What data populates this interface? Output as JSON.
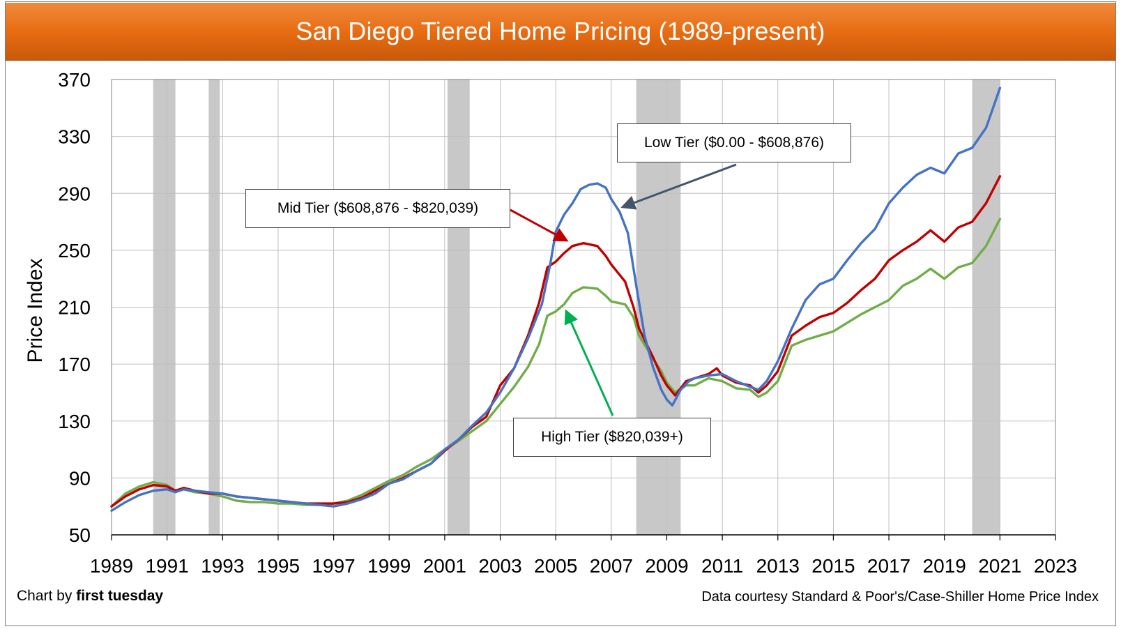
{
  "title": "San Diego Tiered Home Pricing (1989-present)",
  "credit": {
    "prefix": "Chart by ",
    "brand": "first tuesday"
  },
  "source": "Data courtesy Standard & Poor's/Case-Shiller Home Price Index",
  "colors": {
    "low": "#4472c4",
    "mid": "#c00000",
    "high": "#70ad47",
    "recession": "#c8c8c8",
    "low_arrow": "#44546a",
    "mid_arrow": "#c00000",
    "high_arrow": "#00b050"
  },
  "callouts": {
    "low": "Low Tier ($0.00 - $608,876)",
    "mid": "Mid Tier ($608,876 - $820,039)",
    "high": "High Tier ($820,039+)"
  },
  "chart_data": {
    "type": "line",
    "ylabel": "Price Index",
    "xlabel": "",
    "xlim": [
      1989,
      2023
    ],
    "ylim": [
      50,
      370
    ],
    "x_ticks": [
      1989,
      1991,
      1993,
      1995,
      1997,
      1999,
      2001,
      2003,
      2005,
      2007,
      2009,
      2011,
      2013,
      2015,
      2017,
      2019,
      2021,
      2023
    ],
    "y_ticks": [
      50,
      90,
      130,
      170,
      210,
      250,
      290,
      330,
      370
    ],
    "grid": true,
    "recessions": [
      [
        1990.5,
        1991.3
      ],
      [
        1992.5,
        1992.9
      ],
      [
        2001.1,
        2001.9
      ],
      [
        2007.9,
        2009.5
      ],
      [
        2020.0,
        2021.0
      ]
    ],
    "series": [
      {
        "name": "Low Tier ($0.00 - $608,876)",
        "key": "low",
        "points": [
          [
            1989.0,
            67
          ],
          [
            1989.5,
            73
          ],
          [
            1990.0,
            78
          ],
          [
            1990.5,
            81
          ],
          [
            1991.0,
            82
          ],
          [
            1991.3,
            80
          ],
          [
            1991.6,
            82
          ],
          [
            1992.0,
            81
          ],
          [
            1992.5,
            80
          ],
          [
            1993.0,
            79
          ],
          [
            1993.5,
            77
          ],
          [
            1994.0,
            76
          ],
          [
            1994.5,
            75
          ],
          [
            1995.0,
            74
          ],
          [
            1995.5,
            73
          ],
          [
            1996.0,
            72
          ],
          [
            1996.5,
            71
          ],
          [
            1997.0,
            70
          ],
          [
            1997.5,
            72
          ],
          [
            1998.0,
            75
          ],
          [
            1998.5,
            79
          ],
          [
            1999.0,
            86
          ],
          [
            1999.5,
            89
          ],
          [
            2000.0,
            95
          ],
          [
            2000.5,
            100
          ],
          [
            2001.0,
            110
          ],
          [
            2001.5,
            117
          ],
          [
            2002.0,
            127
          ],
          [
            2002.5,
            136
          ],
          [
            2003.0,
            150
          ],
          [
            2003.5,
            167
          ],
          [
            2004.0,
            188
          ],
          [
            2004.5,
            212
          ],
          [
            2004.8,
            240
          ],
          [
            2005.0,
            263
          ],
          [
            2005.3,
            275
          ],
          [
            2005.6,
            283
          ],
          [
            2005.9,
            293
          ],
          [
            2006.2,
            296
          ],
          [
            2006.5,
            297
          ],
          [
            2006.8,
            294
          ],
          [
            2007.0,
            286
          ],
          [
            2007.3,
            277
          ],
          [
            2007.6,
            262
          ],
          [
            2007.9,
            225
          ],
          [
            2008.2,
            190
          ],
          [
            2008.5,
            168
          ],
          [
            2008.8,
            152
          ],
          [
            2009.0,
            145
          ],
          [
            2009.2,
            141
          ],
          [
            2009.5,
            152
          ],
          [
            2009.8,
            158
          ],
          [
            2010.0,
            160
          ],
          [
            2010.5,
            162
          ],
          [
            2011.0,
            163
          ],
          [
            2011.5,
            158
          ],
          [
            2012.0,
            154
          ],
          [
            2012.3,
            152
          ],
          [
            2012.6,
            158
          ],
          [
            2013.0,
            172
          ],
          [
            2013.5,
            195
          ],
          [
            2014.0,
            215
          ],
          [
            2014.5,
            226
          ],
          [
            2015.0,
            230
          ],
          [
            2015.5,
            243
          ],
          [
            2016.0,
            255
          ],
          [
            2016.5,
            265
          ],
          [
            2017.0,
            283
          ],
          [
            2017.5,
            294
          ],
          [
            2018.0,
            303
          ],
          [
            2018.5,
            308
          ],
          [
            2019.0,
            304
          ],
          [
            2019.5,
            318
          ],
          [
            2020.0,
            322
          ],
          [
            2020.5,
            336
          ],
          [
            2021.0,
            364
          ]
        ]
      },
      {
        "name": "Mid Tier ($608,876 - $820,039)",
        "key": "mid",
        "points": [
          [
            1989.0,
            70
          ],
          [
            1989.5,
            77
          ],
          [
            1990.0,
            82
          ],
          [
            1990.5,
            85
          ],
          [
            1991.0,
            84
          ],
          [
            1991.3,
            81
          ],
          [
            1991.6,
            83
          ],
          [
            1992.0,
            81
          ],
          [
            1992.5,
            79
          ],
          [
            1993.0,
            79
          ],
          [
            1993.5,
            77
          ],
          [
            1994.0,
            76
          ],
          [
            1994.5,
            75
          ],
          [
            1995.0,
            74
          ],
          [
            1995.5,
            73
          ],
          [
            1996.0,
            72
          ],
          [
            1996.5,
            72
          ],
          [
            1997.0,
            72
          ],
          [
            1997.5,
            73
          ],
          [
            1998.0,
            76
          ],
          [
            1998.5,
            81
          ],
          [
            1999.0,
            86
          ],
          [
            1999.5,
            90
          ],
          [
            2000.0,
            95
          ],
          [
            2000.5,
            100
          ],
          [
            2001.0,
            109
          ],
          [
            2001.5,
            117
          ],
          [
            2002.0,
            126
          ],
          [
            2002.5,
            133
          ],
          [
            2003.0,
            155
          ],
          [
            2003.5,
            167
          ],
          [
            2004.0,
            190
          ],
          [
            2004.4,
            213
          ],
          [
            2004.7,
            238
          ],
          [
            2005.0,
            242
          ],
          [
            2005.3,
            248
          ],
          [
            2005.6,
            253
          ],
          [
            2006.0,
            255
          ],
          [
            2006.5,
            253
          ],
          [
            2006.8,
            246
          ],
          [
            2007.0,
            240
          ],
          [
            2007.5,
            228
          ],
          [
            2007.8,
            210
          ],
          [
            2008.0,
            195
          ],
          [
            2008.5,
            175
          ],
          [
            2008.8,
            162
          ],
          [
            2009.0,
            155
          ],
          [
            2009.3,
            148
          ],
          [
            2009.7,
            158
          ],
          [
            2010.0,
            160
          ],
          [
            2010.5,
            163
          ],
          [
            2010.8,
            167
          ],
          [
            2011.0,
            162
          ],
          [
            2011.5,
            157
          ],
          [
            2012.0,
            155
          ],
          [
            2012.3,
            150
          ],
          [
            2012.6,
            155
          ],
          [
            2013.0,
            165
          ],
          [
            2013.5,
            190
          ],
          [
            2014.0,
            197
          ],
          [
            2014.5,
            203
          ],
          [
            2015.0,
            206
          ],
          [
            2015.5,
            213
          ],
          [
            2016.0,
            222
          ],
          [
            2016.5,
            230
          ],
          [
            2017.0,
            243
          ],
          [
            2017.5,
            250
          ],
          [
            2018.0,
            256
          ],
          [
            2018.5,
            264
          ],
          [
            2019.0,
            256
          ],
          [
            2019.5,
            266
          ],
          [
            2020.0,
            270
          ],
          [
            2020.5,
            283
          ],
          [
            2021.0,
            302
          ]
        ]
      },
      {
        "name": "High Tier ($820,039+)",
        "key": "high",
        "points": [
          [
            1989.0,
            70
          ],
          [
            1989.5,
            79
          ],
          [
            1990.0,
            84
          ],
          [
            1990.5,
            87
          ],
          [
            1991.0,
            85
          ],
          [
            1991.3,
            81
          ],
          [
            1991.6,
            82
          ],
          [
            1992.0,
            80
          ],
          [
            1992.5,
            79
          ],
          [
            1993.0,
            77
          ],
          [
            1993.5,
            74
          ],
          [
            1994.0,
            73
          ],
          [
            1994.5,
            73
          ],
          [
            1995.0,
            72
          ],
          [
            1995.5,
            72
          ],
          [
            1996.0,
            71
          ],
          [
            1996.5,
            71
          ],
          [
            1997.0,
            72
          ],
          [
            1997.5,
            74
          ],
          [
            1998.0,
            78
          ],
          [
            1998.5,
            83
          ],
          [
            1999.0,
            88
          ],
          [
            1999.5,
            92
          ],
          [
            2000.0,
            98
          ],
          [
            2000.5,
            103
          ],
          [
            2001.0,
            110
          ],
          [
            2001.5,
            116
          ],
          [
            2002.0,
            123
          ],
          [
            2002.5,
            130
          ],
          [
            2003.0,
            142
          ],
          [
            2003.5,
            154
          ],
          [
            2004.0,
            168
          ],
          [
            2004.4,
            184
          ],
          [
            2004.7,
            204
          ],
          [
            2005.0,
            207
          ],
          [
            2005.3,
            212
          ],
          [
            2005.6,
            220
          ],
          [
            2006.0,
            224
          ],
          [
            2006.5,
            223
          ],
          [
            2006.8,
            218
          ],
          [
            2007.0,
            214
          ],
          [
            2007.5,
            212
          ],
          [
            2007.8,
            203
          ],
          [
            2008.0,
            190
          ],
          [
            2008.5,
            174
          ],
          [
            2008.8,
            165
          ],
          [
            2009.0,
            157
          ],
          [
            2009.3,
            150
          ],
          [
            2009.7,
            155
          ],
          [
            2010.0,
            155
          ],
          [
            2010.5,
            160
          ],
          [
            2011.0,
            158
          ],
          [
            2011.5,
            153
          ],
          [
            2012.0,
            152
          ],
          [
            2012.3,
            147
          ],
          [
            2012.6,
            150
          ],
          [
            2013.0,
            158
          ],
          [
            2013.5,
            183
          ],
          [
            2014.0,
            187
          ],
          [
            2014.5,
            190
          ],
          [
            2015.0,
            193
          ],
          [
            2015.5,
            199
          ],
          [
            2016.0,
            205
          ],
          [
            2016.5,
            210
          ],
          [
            2017.0,
            215
          ],
          [
            2017.5,
            225
          ],
          [
            2018.0,
            230
          ],
          [
            2018.5,
            237
          ],
          [
            2019.0,
            230
          ],
          [
            2019.5,
            238
          ],
          [
            2020.0,
            241
          ],
          [
            2020.5,
            253
          ],
          [
            2021.0,
            272
          ]
        ]
      }
    ]
  }
}
